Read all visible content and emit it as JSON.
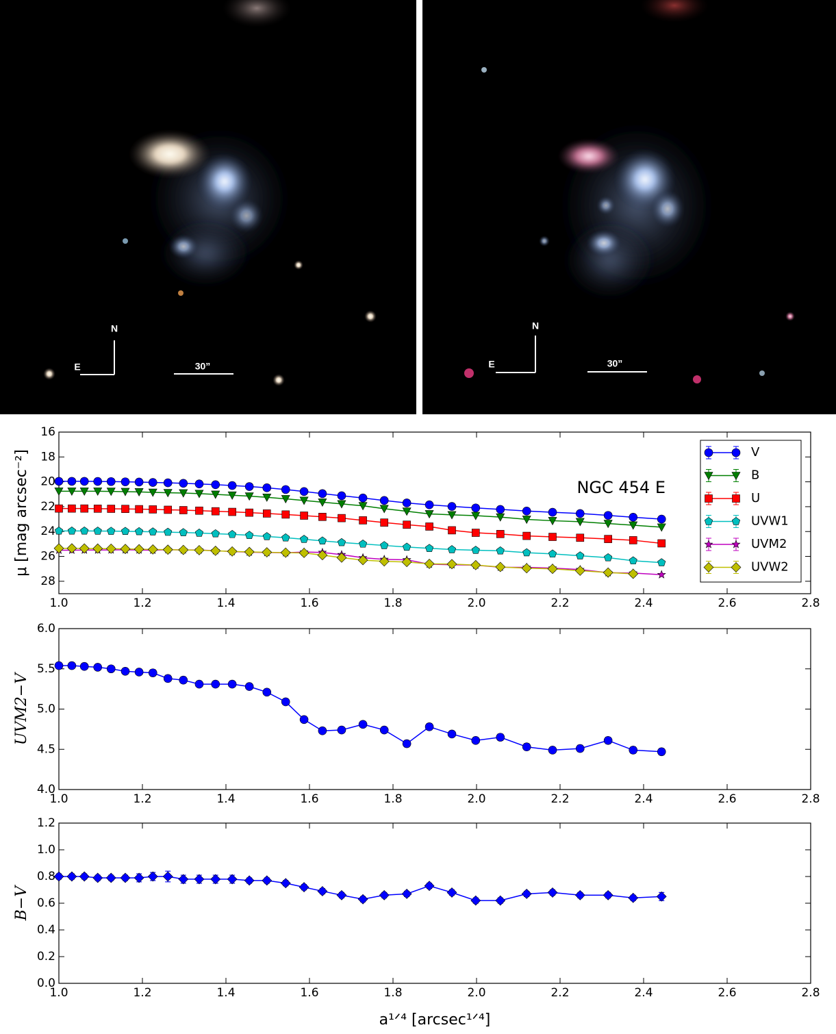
{
  "images": [
    {
      "north": "N",
      "east": "E",
      "scale": "30”"
    },
    {
      "north": "N",
      "east": "E",
      "scale": "30”"
    }
  ],
  "chart_data": [
    {
      "type": "line",
      "ylabel": "μ [mag arcsec⁻²]",
      "annotation": "NGC 454 E",
      "legend": "upper right",
      "grid": false,
      "x": [
        1.0,
        1.031,
        1.061,
        1.093,
        1.125,
        1.159,
        1.192,
        1.225,
        1.261,
        1.298,
        1.336,
        1.375,
        1.415,
        1.456,
        1.498,
        1.543,
        1.587,
        1.631,
        1.677,
        1.728,
        1.779,
        1.833,
        1.887,
        1.941,
        1.998,
        2.057,
        2.12,
        2.182,
        2.248,
        2.315,
        2.375,
        2.443
      ],
      "xlim": [
        1.0,
        2.8
      ],
      "xticks": [
        {
          "value": 1.0,
          "label": "1.0"
        },
        1.2,
        1.4,
        1.6,
        1.8,
        {
          "value": 2.0,
          "label": "2.0"
        },
        2.2,
        2.4,
        2.6,
        2.8
      ],
      "ylim": [
        29,
        16
      ],
      "yticks": [
        16,
        18,
        20,
        22,
        24,
        26,
        28
      ],
      "series": [
        {
          "name": "V",
          "color": "#0000ff",
          "marker": "o",
          "values": [
            19.96,
            19.96,
            19.96,
            19.97,
            19.98,
            20.0,
            20.02,
            20.05,
            20.08,
            20.12,
            20.17,
            20.23,
            20.3,
            20.38,
            20.48,
            20.62,
            20.78,
            20.95,
            21.12,
            21.3,
            21.5,
            21.7,
            21.85,
            21.98,
            22.1,
            22.22,
            22.35,
            22.45,
            22.55,
            22.7,
            22.85,
            23.0
          ]
        },
        {
          "name": "B",
          "color": "#007f00",
          "marker": "v",
          "values": [
            20.76,
            20.76,
            20.76,
            20.76,
            20.77,
            20.79,
            20.81,
            20.85,
            20.88,
            20.9,
            20.95,
            21.01,
            21.08,
            21.15,
            21.25,
            21.37,
            21.5,
            21.64,
            21.78,
            21.93,
            22.16,
            22.37,
            22.58,
            22.66,
            22.72,
            22.84,
            23.02,
            23.13,
            23.21,
            23.36,
            23.49,
            23.65
          ]
        },
        {
          "name": "U",
          "color": "#ff0000",
          "marker": "s",
          "values": [
            22.15,
            22.15,
            22.15,
            22.16,
            22.17,
            22.18,
            22.2,
            22.22,
            22.25,
            22.28,
            22.32,
            22.37,
            22.42,
            22.48,
            22.55,
            22.63,
            22.72,
            22.82,
            22.92,
            23.1,
            23.28,
            23.45,
            23.6,
            23.9,
            24.1,
            24.2,
            24.35,
            24.43,
            24.5,
            24.6,
            24.7,
            24.95
          ]
        },
        {
          "name": "UVW1",
          "color": "#00bfbf",
          "marker": "p",
          "values": [
            23.95,
            23.95,
            23.95,
            23.96,
            23.97,
            23.98,
            24.0,
            24.02,
            24.05,
            24.08,
            24.12,
            24.17,
            24.23,
            24.3,
            24.4,
            24.5,
            24.62,
            24.75,
            24.88,
            25.0,
            25.12,
            25.25,
            25.35,
            25.45,
            25.5,
            25.55,
            25.7,
            25.8,
            25.95,
            26.1,
            26.35,
            26.5
          ]
        },
        {
          "name": "UVM2",
          "color": "#bf00bf",
          "marker": "*",
          "values": [
            25.5,
            25.5,
            25.49,
            25.49,
            25.48,
            25.47,
            25.48,
            25.5,
            25.46,
            25.48,
            25.48,
            25.54,
            25.61,
            25.66,
            25.69,
            25.71,
            25.65,
            25.68,
            25.86,
            26.11,
            26.24,
            26.27,
            26.63,
            26.67,
            26.71,
            26.87,
            26.88,
            26.94,
            27.06,
            27.31,
            27.34,
            27.47
          ]
        },
        {
          "name": "UVW2",
          "color": "#bfbf00",
          "marker": "D",
          "values": [
            25.35,
            25.35,
            25.36,
            25.37,
            25.38,
            25.4,
            25.42,
            25.44,
            25.46,
            25.48,
            25.5,
            25.55,
            25.6,
            25.64,
            25.67,
            25.7,
            25.72,
            25.9,
            26.1,
            26.3,
            26.4,
            26.45,
            26.6,
            26.62,
            26.7,
            26.85,
            26.95,
            27.0,
            27.15,
            27.3,
            27.4,
            null
          ]
        }
      ]
    },
    {
      "type": "line",
      "ylabel": "UVM2−V",
      "grid": false,
      "x": [
        1.0,
        1.031,
        1.061,
        1.093,
        1.125,
        1.159,
        1.192,
        1.225,
        1.261,
        1.298,
        1.336,
        1.375,
        1.415,
        1.456,
        1.498,
        1.543,
        1.587,
        1.631,
        1.677,
        1.728,
        1.779,
        1.833,
        1.887,
        1.941,
        1.998,
        2.057,
        2.12,
        2.182,
        2.248,
        2.315,
        2.375,
        2.443
      ],
      "xlim": [
        1.0,
        2.8
      ],
      "xticks": [
        {
          "value": 1.0,
          "label": "1.0"
        },
        1.2,
        1.4,
        1.6,
        1.8,
        {
          "value": 2.0,
          "label": "2.0"
        },
        2.2,
        2.4,
        2.6,
        2.8
      ],
      "ylim": [
        4.0,
        6.0
      ],
      "yticks": [
        {
          "value": 4.0,
          "label": "4.0"
        },
        4.5,
        {
          "value": 5.0,
          "label": "5.0"
        },
        5.5,
        {
          "value": 6.0,
          "label": "6.0"
        }
      ],
      "series": [
        {
          "color": "#0000ff",
          "marker": "o",
          "values": [
            5.54,
            5.54,
            5.53,
            5.52,
            5.5,
            5.47,
            5.46,
            5.45,
            5.38,
            5.36,
            5.31,
            5.31,
            5.31,
            5.28,
            5.21,
            5.09,
            4.87,
            4.73,
            4.74,
            4.81,
            4.74,
            4.57,
            4.78,
            4.69,
            4.61,
            4.65,
            4.53,
            4.49,
            4.51,
            4.61,
            4.49,
            4.47
          ],
          "errors": [
            0.03,
            0.03,
            0.03,
            0.03,
            0.03,
            0.03,
            0.03,
            0.04,
            0.04,
            0.04,
            0.03,
            0.03,
            0.03,
            0.03,
            0.03,
            0.03,
            0.03,
            0.03,
            0.03,
            0.03,
            0.03,
            0.04,
            0.04,
            0.03,
            0.03,
            0.04,
            0.04,
            0.03,
            0.04,
            0.04,
            0.04,
            0.04
          ]
        }
      ]
    },
    {
      "type": "line",
      "ylabel": "B−V",
      "xlabel": "a¹ᐟ⁴ [arcsec¹ᐟ⁴]",
      "grid": false,
      "x": [
        1.0,
        1.031,
        1.061,
        1.093,
        1.125,
        1.159,
        1.192,
        1.225,
        1.261,
        1.298,
        1.336,
        1.375,
        1.415,
        1.456,
        1.498,
        1.543,
        1.587,
        1.631,
        1.677,
        1.728,
        1.779,
        1.833,
        1.887,
        1.941,
        1.998,
        2.057,
        2.12,
        2.182,
        2.248,
        2.315,
        2.375,
        2.443
      ],
      "xlim": [
        1.0,
        2.8
      ],
      "xticks": [
        {
          "value": 1.0,
          "label": "1.0"
        },
        1.2,
        1.4,
        1.6,
        1.8,
        {
          "value": 2.0,
          "label": "2.0"
        },
        2.2,
        2.4,
        2.6,
        2.8
      ],
      "ylim": [
        0.0,
        1.2
      ],
      "yticks": [
        {
          "value": 0.0,
          "label": "0.0"
        },
        0.2,
        0.4,
        0.6,
        0.8,
        {
          "value": 1.0,
          "label": "1.0"
        },
        1.2
      ],
      "series": [
        {
          "color": "#0000ff",
          "marker": "D",
          "values": [
            0.8,
            0.8,
            0.8,
            0.79,
            0.79,
            0.79,
            0.79,
            0.8,
            0.8,
            0.78,
            0.78,
            0.78,
            0.78,
            0.77,
            0.77,
            0.75,
            0.72,
            0.69,
            0.66,
            0.63,
            0.66,
            0.67,
            0.73,
            0.68,
            0.62,
            0.62,
            0.67,
            0.68,
            0.66,
            0.66,
            0.64,
            0.65
          ],
          "errors": [
            0.02,
            0.02,
            0.02,
            0.02,
            0.02,
            0.02,
            0.03,
            0.03,
            0.04,
            0.03,
            0.03,
            0.03,
            0.03,
            0.02,
            0.02,
            0.02,
            0.02,
            0.02,
            0.02,
            0.02,
            0.02,
            0.02,
            0.02,
            0.02,
            0.02,
            0.02,
            0.02,
            0.02,
            0.02,
            0.02,
            0.02,
            0.03
          ]
        }
      ]
    }
  ]
}
